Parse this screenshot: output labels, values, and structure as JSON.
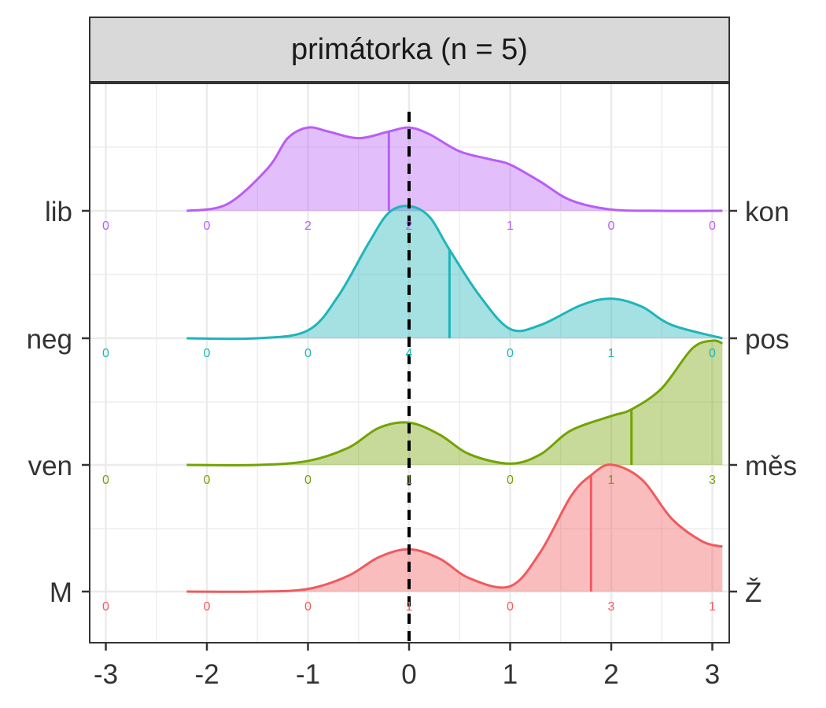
{
  "chart_data": {
    "type": "ridgeline",
    "facet_title": "primátorka (n = 5)",
    "xlim": [
      -3.1,
      3.1
    ],
    "x_ticks": [
      "-3",
      "-2",
      "-1",
      "0",
      "1",
      "2",
      "3"
    ],
    "x_tick_values": [
      -3,
      -2,
      -1,
      0,
      1,
      2,
      3
    ],
    "reference_line_x": 0,
    "rows": [
      {
        "left_label": "lib",
        "right_label": "kon",
        "color": "#B75EF5",
        "mean": -0.2,
        "count_x": [
          -3,
          -2,
          -1,
          0,
          1,
          2,
          3
        ],
        "counts": [
          "0",
          "0",
          "2",
          "2",
          "1",
          "0",
          "0"
        ],
        "density_x": [
          -2.2,
          -1.8,
          -1.4,
          -1.2,
          -1.0,
          -0.8,
          -0.5,
          -0.2,
          0.0,
          0.2,
          0.5,
          0.8,
          1.0,
          1.3,
          1.6,
          2.0,
          2.5,
          3.1
        ],
        "density_y": [
          0.0,
          0.05,
          0.32,
          0.55,
          0.63,
          0.6,
          0.55,
          0.6,
          0.63,
          0.58,
          0.45,
          0.39,
          0.35,
          0.22,
          0.08,
          0.01,
          0.0,
          0.0
        ]
      },
      {
        "left_label": "neg",
        "right_label": "pos",
        "color": "#1FB5B9",
        "mean": 0.4,
        "count_x": [
          -3,
          -2,
          -1,
          0,
          1,
          2,
          3
        ],
        "counts": [
          "0",
          "0",
          "0",
          "4",
          "0",
          "1",
          "0"
        ],
        "density_x": [
          -2.2,
          -1.5,
          -1.0,
          -0.7,
          -0.4,
          -0.2,
          0.0,
          0.2,
          0.4,
          0.7,
          1.0,
          1.3,
          1.7,
          2.0,
          2.3,
          2.6,
          3.1
        ],
        "density_y": [
          0.0,
          0.0,
          0.06,
          0.32,
          0.72,
          0.95,
          1.0,
          0.92,
          0.67,
          0.32,
          0.07,
          0.1,
          0.25,
          0.3,
          0.24,
          0.1,
          0.0
        ]
      },
      {
        "left_label": "ven",
        "right_label": "měs",
        "color": "#72A303",
        "mean": 2.2,
        "count_x": [
          -3,
          -2,
          -1,
          0,
          1,
          2,
          3
        ],
        "counts": [
          "0",
          "0",
          "0",
          "1",
          "0",
          "1",
          "3"
        ],
        "density_x": [
          -2.2,
          -1.5,
          -1.0,
          -0.6,
          -0.3,
          0.0,
          0.3,
          0.6,
          1.0,
          1.3,
          1.6,
          2.0,
          2.2,
          2.5,
          2.8,
          3.0,
          3.1
        ],
        "density_y": [
          0.0,
          0.0,
          0.03,
          0.13,
          0.28,
          0.32,
          0.23,
          0.08,
          0.01,
          0.08,
          0.26,
          0.37,
          0.42,
          0.58,
          0.88,
          0.94,
          0.92
        ]
      },
      {
        "left_label": "M",
        "right_label": "Ž",
        "color": "#F05A5D",
        "mean": 1.8,
        "count_x": [
          -3,
          -2,
          -1,
          0,
          1,
          2,
          3
        ],
        "counts": [
          "0",
          "0",
          "0",
          "1",
          "0",
          "3",
          "1"
        ],
        "density_x": [
          -2.2,
          -1.5,
          -1.0,
          -0.6,
          -0.3,
          0.0,
          0.3,
          0.6,
          1.0,
          1.3,
          1.6,
          1.8,
          2.0,
          2.3,
          2.6,
          2.9,
          3.1
        ],
        "density_y": [
          0.0,
          0.0,
          0.02,
          0.12,
          0.26,
          0.32,
          0.25,
          0.1,
          0.04,
          0.3,
          0.72,
          0.88,
          0.96,
          0.85,
          0.55,
          0.38,
          0.34
        ]
      }
    ]
  }
}
